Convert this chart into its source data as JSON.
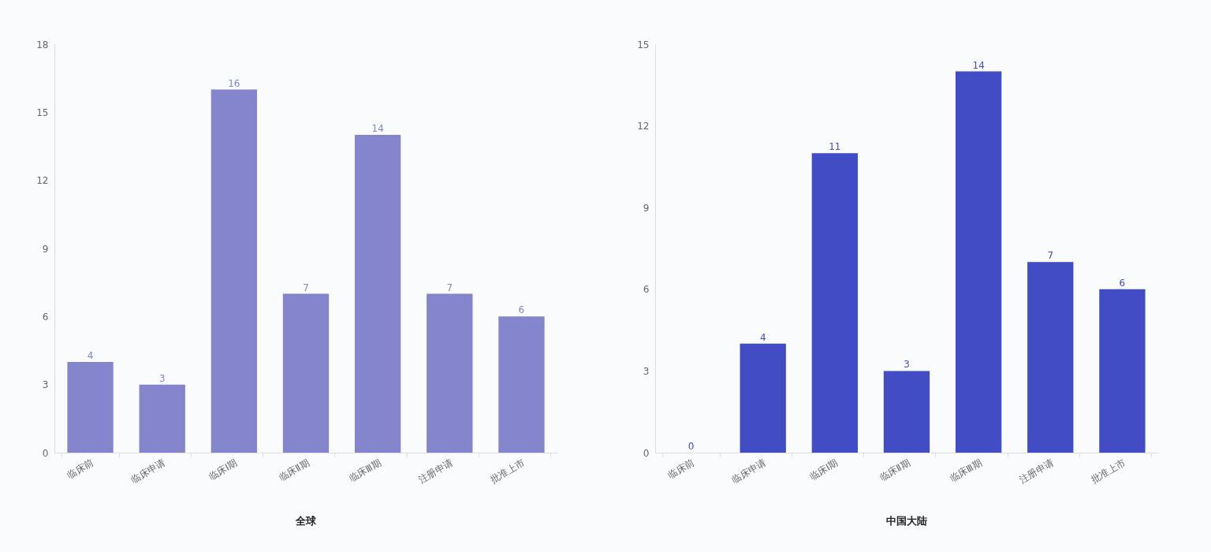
{
  "chart_data": [
    {
      "type": "bar",
      "title": "全球",
      "categories": [
        "临床前",
        "临床申请",
        "临床Ⅰ期",
        "临床Ⅱ期",
        "临床Ⅲ期",
        "注册申请",
        "批准上市"
      ],
      "values": [
        4,
        3,
        16,
        7,
        14,
        7,
        6
      ],
      "color": "#8485cd",
      "ylim": [
        0,
        18
      ],
      "yticks": [
        0,
        3,
        6,
        9,
        12,
        15,
        18
      ],
      "grid": false,
      "data_labels": true
    },
    {
      "type": "bar",
      "title": "中国大陆",
      "categories": [
        "临床前",
        "临床申请",
        "临床Ⅰ期",
        "临床Ⅱ期",
        "临床Ⅲ期",
        "注册申请",
        "批准上市"
      ],
      "values": [
        0,
        4,
        11,
        3,
        14,
        7,
        6
      ],
      "color": "#414cc5",
      "ylim": [
        0,
        15
      ],
      "yticks": [
        0,
        3,
        6,
        9,
        12,
        15
      ],
      "grid": false,
      "data_labels": true
    }
  ]
}
